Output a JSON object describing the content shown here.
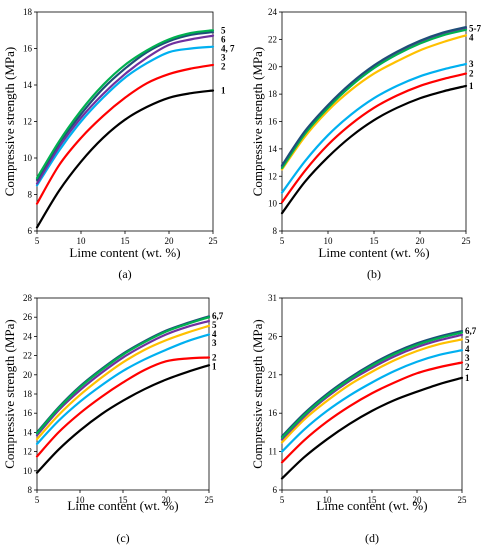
{
  "chart_data": [
    {
      "type": "line",
      "panel_label": "(a)",
      "xlabel": "Lime content (wt. %)",
      "ylabel": "Compressive strength (MPa)",
      "xlim": [
        5,
        25
      ],
      "ylim": [
        6,
        18
      ],
      "x_ticks": [
        "5",
        "10",
        "15",
        "20",
        "25"
      ],
      "y_ticks": [
        "6",
        "8",
        "10",
        "12",
        "14",
        "16",
        "18"
      ],
      "grid": false,
      "x": [
        5,
        7.5,
        10,
        12.5,
        15,
        17.5,
        20,
        22.5,
        25
      ],
      "series": [
        {
          "name": "1",
          "color": "#000000",
          "values": [
            6.2,
            8.2,
            9.8,
            11.1,
            12.1,
            12.8,
            13.3,
            13.55,
            13.7
          ]
        },
        {
          "name": "2",
          "color": "#ff0000",
          "values": [
            7.5,
            9.6,
            11.1,
            12.3,
            13.3,
            14.1,
            14.6,
            14.9,
            15.1
          ]
        },
        {
          "name": "3",
          "color": "#00b0f0",
          "values": [
            8.5,
            10.4,
            12.0,
            13.3,
            14.4,
            15.2,
            15.8,
            16.0,
            16.1
          ]
        },
        {
          "name": "4, 7",
          "color": "#7030a0",
          "values": [
            8.6,
            10.6,
            12.2,
            13.5,
            14.6,
            15.5,
            16.2,
            16.5,
            16.7
          ]
        },
        {
          "name": "6",
          "color": "#1f4e79",
          "values": [
            8.8,
            10.8,
            12.4,
            13.8,
            14.9,
            15.8,
            16.4,
            16.75,
            16.9
          ]
        },
        {
          "name": "5",
          "color": "#00b050",
          "values": [
            8.9,
            10.9,
            12.6,
            14.0,
            15.1,
            15.9,
            16.5,
            16.85,
            17.0
          ]
        }
      ]
    },
    {
      "type": "line",
      "panel_label": "(b)",
      "xlabel": "Lime content (wt. %)",
      "ylabel": "Compressive strength (MPa)",
      "xlim": [
        5,
        25
      ],
      "ylim": [
        8,
        24
      ],
      "x_ticks": [
        "5",
        "10",
        "15",
        "20",
        "25"
      ],
      "y_ticks": [
        "8",
        "10",
        "12",
        "14",
        "16",
        "18",
        "20",
        "22",
        "24"
      ],
      "grid": false,
      "x": [
        5,
        7.5,
        10,
        12.5,
        15,
        17.5,
        20,
        22.5,
        25
      ],
      "series": [
        {
          "name": "1",
          "color": "#000000",
          "values": [
            9.3,
            11.6,
            13.4,
            14.9,
            16.1,
            17.0,
            17.7,
            18.2,
            18.6
          ]
        },
        {
          "name": "2",
          "color": "#ff0000",
          "values": [
            10.1,
            12.4,
            14.3,
            15.8,
            17.0,
            17.9,
            18.6,
            19.1,
            19.5
          ]
        },
        {
          "name": "3",
          "color": "#00b0f0",
          "values": [
            10.8,
            13.1,
            15.0,
            16.5,
            17.7,
            18.6,
            19.3,
            19.8,
            20.2
          ]
        },
        {
          "name": "4",
          "color": "#ffc000",
          "values": [
            12.5,
            14.9,
            16.8,
            18.3,
            19.5,
            20.4,
            21.2,
            21.8,
            22.3
          ]
        },
        {
          "name": "5-7",
          "color": "#7030a0",
          "values": [
            12.7,
            15.2,
            17.1,
            18.7,
            20.0,
            21.0,
            21.8,
            22.4,
            22.8
          ]
        },
        {
          "name": "",
          "color": "#00b050",
          "values": [
            12.6,
            15.1,
            17.0,
            18.6,
            19.9,
            20.9,
            21.7,
            22.3,
            22.7
          ]
        },
        {
          "name": "",
          "color": "#1f4e79",
          "values": [
            12.8,
            15.3,
            17.2,
            18.8,
            20.1,
            21.1,
            21.9,
            22.5,
            22.9
          ]
        }
      ]
    },
    {
      "type": "line",
      "panel_label": "(c)",
      "xlabel": "Lime content (wt. %)",
      "ylabel": "Compressive strength (MPa)",
      "xlim": [
        5,
        25
      ],
      "ylim": [
        8,
        28
      ],
      "x_ticks": [
        "5",
        "10",
        "15",
        "20",
        "25"
      ],
      "y_ticks": [
        "8",
        "10",
        "12",
        "14",
        "16",
        "18",
        "20",
        "22",
        "24",
        "26",
        "28"
      ],
      "grid": false,
      "x": [
        5,
        7.5,
        10,
        12.5,
        15,
        17.5,
        20,
        22.5,
        25
      ],
      "series": [
        {
          "name": "1",
          "color": "#000000",
          "values": [
            9.8,
            12.2,
            14.2,
            15.9,
            17.3,
            18.5,
            19.5,
            20.3,
            21.0
          ]
        },
        {
          "name": "2",
          "color": "#ff0000",
          "values": [
            11.5,
            14.0,
            16.0,
            17.7,
            19.2,
            20.5,
            21.4,
            21.7,
            21.8
          ]
        },
        {
          "name": "3",
          "color": "#00b0f0",
          "values": [
            12.8,
            15.2,
            17.2,
            18.9,
            20.4,
            21.6,
            22.6,
            23.5,
            24.2
          ]
        },
        {
          "name": "4",
          "color": "#ffc000",
          "values": [
            13.3,
            15.8,
            17.9,
            19.7,
            21.3,
            22.6,
            23.6,
            24.4,
            25.1
          ]
        },
        {
          "name": "5",
          "color": "#7030a0",
          "values": [
            13.7,
            16.3,
            18.4,
            20.2,
            21.8,
            23.1,
            24.2,
            25.0,
            25.6
          ]
        },
        {
          "name": "6,7",
          "color": "#1f4e79",
          "values": [
            14.0,
            16.6,
            18.8,
            20.6,
            22.2,
            23.5,
            24.6,
            25.4,
            26.1
          ]
        },
        {
          "name": "",
          "color": "#00b050",
          "values": [
            13.9,
            16.5,
            18.7,
            20.5,
            22.1,
            23.4,
            24.5,
            25.3,
            26.0
          ]
        }
      ]
    },
    {
      "type": "line",
      "panel_label": "(d)",
      "xlabel": "Lime content (wt. %)",
      "ylabel": "Compressive strength (MPa)",
      "xlim": [
        5,
        25
      ],
      "ylim": [
        6,
        31
      ],
      "x_ticks": [
        "5",
        "10",
        "15",
        "20",
        "25"
      ],
      "y_ticks": [
        "6",
        "11",
        "16",
        "21",
        "26",
        "31"
      ],
      "grid": false,
      "x": [
        5,
        7.5,
        10,
        12.5,
        15,
        17.5,
        20,
        22.5,
        25
      ],
      "series": [
        {
          "name": "1",
          "color": "#000000",
          "values": [
            7.5,
            10.3,
            12.6,
            14.6,
            16.3,
            17.7,
            18.8,
            19.8,
            20.6
          ]
        },
        {
          "name": "2",
          "color": "#ff0000",
          "values": [
            9.6,
            12.5,
            14.9,
            16.9,
            18.6,
            20.0,
            21.2,
            22.0,
            22.6
          ]
        },
        {
          "name": "3",
          "color": "#00b0f0",
          "values": [
            11.0,
            13.9,
            16.3,
            18.3,
            20.0,
            21.5,
            22.7,
            23.6,
            24.2
          ]
        },
        {
          "name": "4",
          "color": "#ffc000",
          "values": [
            12.2,
            15.2,
            17.6,
            19.7,
            21.4,
            22.9,
            24.1,
            25.0,
            25.6
          ]
        },
        {
          "name": "5",
          "color": "#7030a0",
          "values": [
            12.6,
            15.6,
            18.1,
            20.2,
            21.9,
            23.4,
            24.6,
            25.5,
            26.2
          ]
        },
        {
          "name": "6,7",
          "color": "#1f4e79",
          "values": [
            13.0,
            16.0,
            18.5,
            20.6,
            22.4,
            23.9,
            25.1,
            26.0,
            26.7
          ]
        },
        {
          "name": "",
          "color": "#00b050",
          "values": [
            12.8,
            15.8,
            18.3,
            20.4,
            22.2,
            23.7,
            24.9,
            25.8,
            26.5
          ]
        }
      ]
    }
  ]
}
